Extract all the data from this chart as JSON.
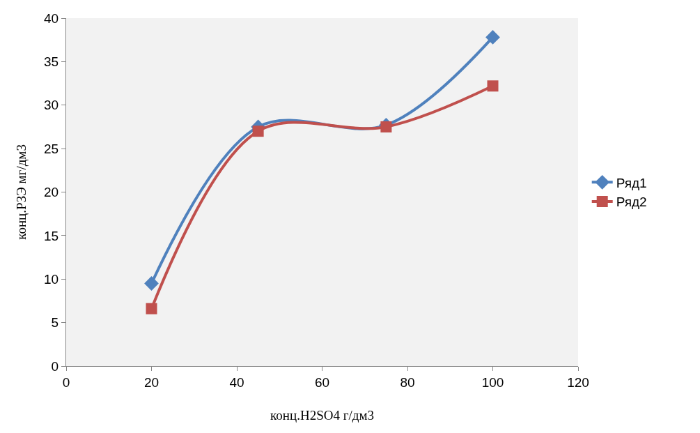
{
  "chart_data": {
    "type": "line",
    "xlabel": "конц.H2SO4 г/дм3",
    "ylabel": "конц.РЗЭ мг/дм3",
    "x": [
      20,
      45,
      75,
      100
    ],
    "series": [
      {
        "name": "Ряд1",
        "color": "#4f81bd",
        "marker": "diamond",
        "values": [
          9.5,
          27.5,
          27.7,
          37.8
        ]
      },
      {
        "name": "Ряд2",
        "color": "#c0504d",
        "marker": "square",
        "values": [
          6.6,
          27.0,
          27.5,
          32.2
        ]
      }
    ],
    "xlim": [
      0,
      120
    ],
    "xticks": [
      0,
      20,
      40,
      60,
      80,
      100,
      120
    ],
    "ylim": [
      0,
      40
    ],
    "yticks": [
      0,
      5,
      10,
      15,
      20,
      25,
      30,
      35,
      40
    ],
    "grid": false,
    "legend": "right",
    "line_style": "solid"
  }
}
